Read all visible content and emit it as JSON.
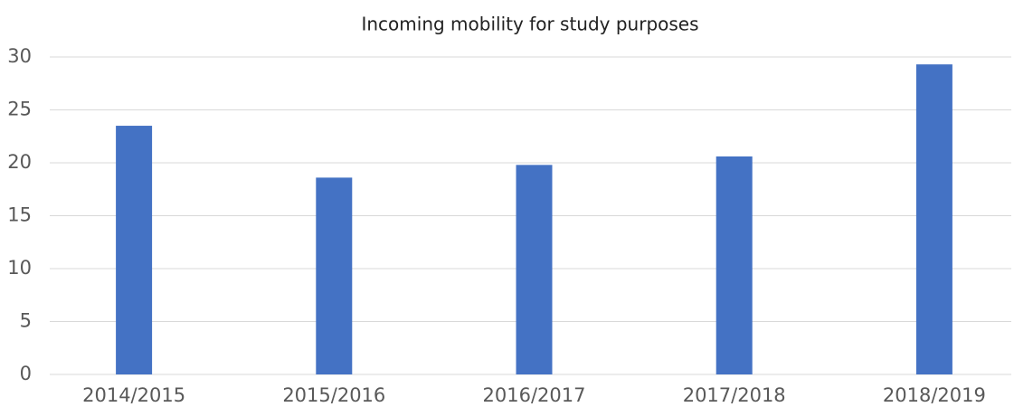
{
  "chart_data": {
    "type": "bar",
    "title": "Incoming mobility for study purposes",
    "categories": [
      "2014/2015",
      "2015/2016",
      "2016/2017",
      "2017/2018",
      "2018/2019"
    ],
    "values": [
      23.5,
      18.6,
      19.8,
      20.6,
      29.3
    ],
    "color": "#4472c4",
    "ylim": [
      0,
      30
    ],
    "yticks": [
      0,
      5,
      10,
      15,
      20,
      25,
      30
    ],
    "grid": true
  }
}
